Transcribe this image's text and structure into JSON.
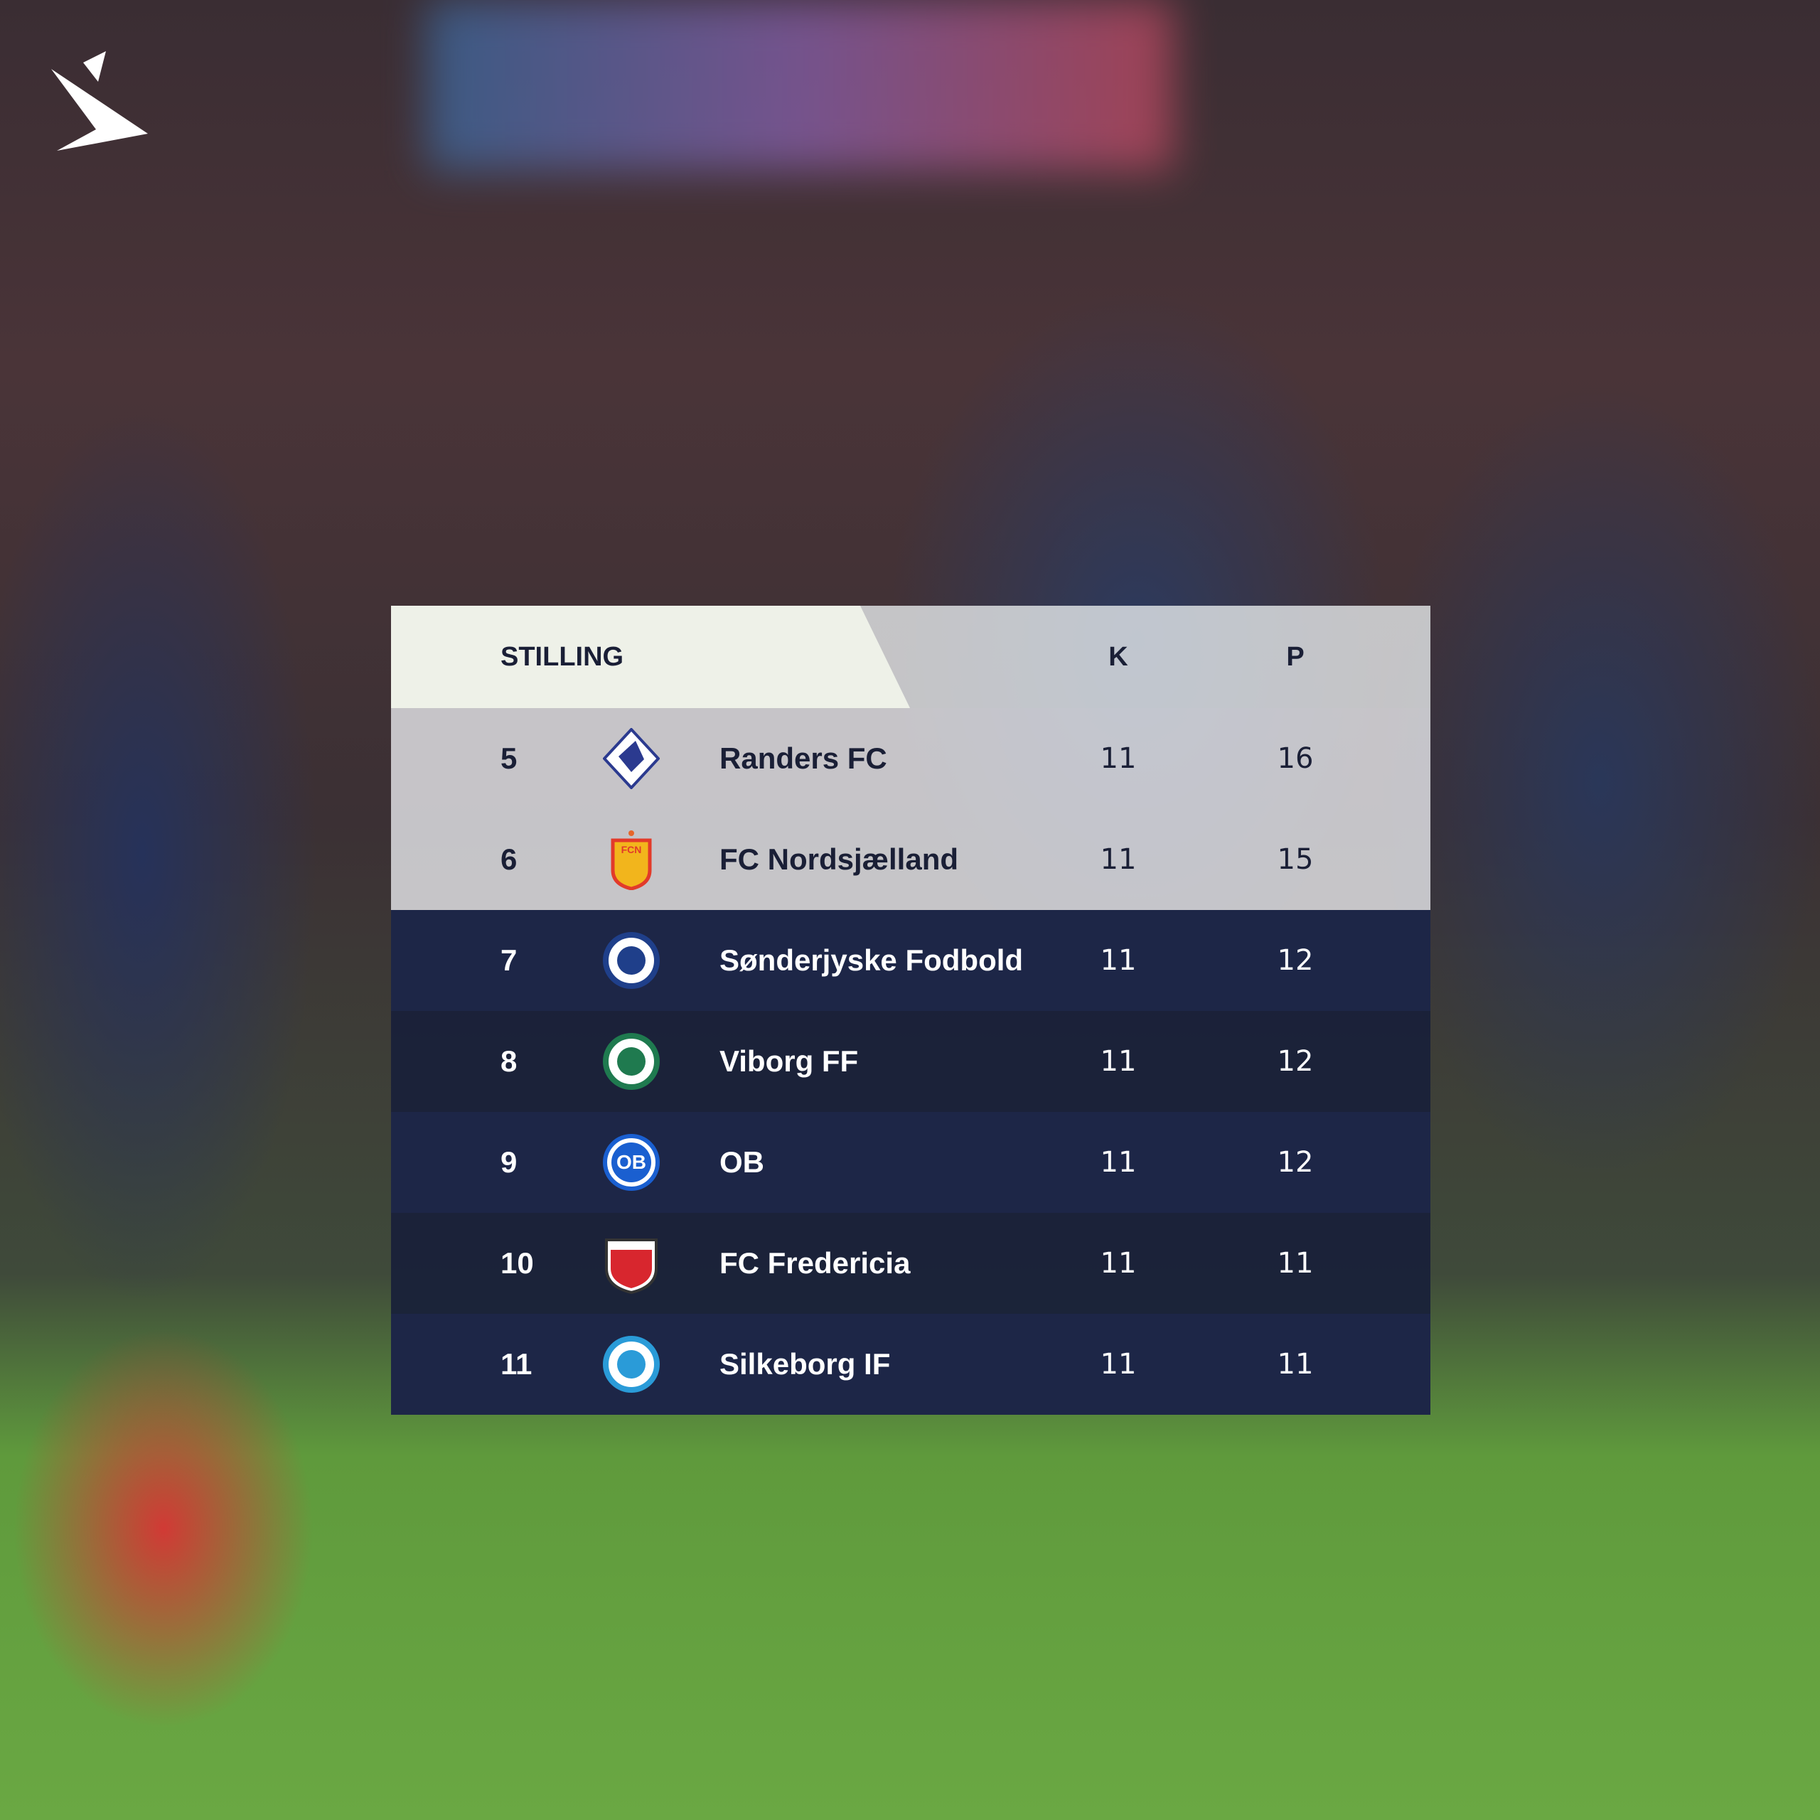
{
  "header": {
    "title": "STILLING",
    "col_k": "K",
    "col_p": "P"
  },
  "rows": [
    {
      "rank": "5",
      "team": "Randers FC",
      "k": "11",
      "p": "16",
      "crest": "randers-crest-icon",
      "color": "#2b3a8f"
    },
    {
      "rank": "6",
      "team": "FC Nordsjælland",
      "k": "11",
      "p": "15",
      "crest": "fcn-crest-icon",
      "color": "#e23a2a"
    },
    {
      "rank": "7",
      "team": "Sønderjyske Fodbold",
      "k": "11",
      "p": "12",
      "crest": "sonderjyske-crest-icon",
      "color": "#1f3f8a"
    },
    {
      "rank": "8",
      "team": "Viborg FF",
      "k": "11",
      "p": "12",
      "crest": "viborg-crest-icon",
      "color": "#1f7a4f"
    },
    {
      "rank": "9",
      "team": "OB",
      "k": "11",
      "p": "12",
      "crest": "ob-crest-icon",
      "color": "#1a5fd0",
      "crest_text": "OB"
    },
    {
      "rank": "10",
      "team": "FC Fredericia",
      "k": "11",
      "p": "11",
      "crest": "fredericia-crest-icon",
      "color": "#d8262e"
    },
    {
      "rank": "11",
      "team": "Silkeborg IF",
      "k": "11",
      "p": "11",
      "crest": "silkeborg-crest-icon",
      "color": "#2a9bd8"
    }
  ]
}
